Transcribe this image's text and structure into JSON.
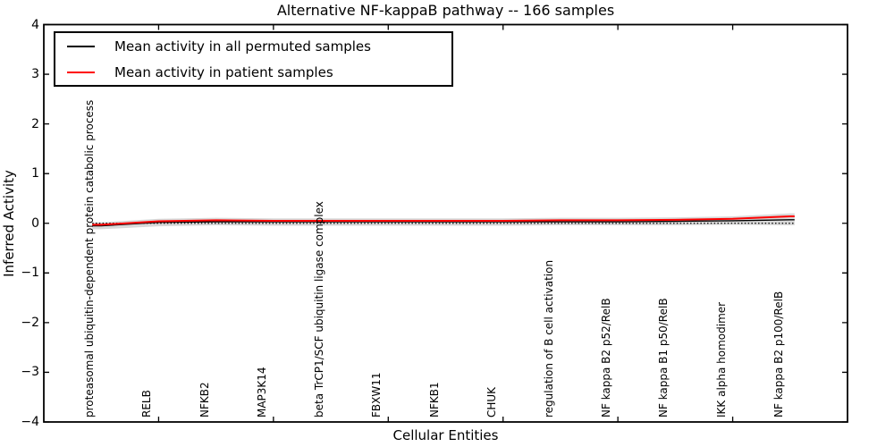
{
  "figure": {
    "title": "Alternative NF-kappaB pathway -- 166 samples",
    "x_axis_label": "Cellular Entities",
    "y_axis_label": "Inferred Activity"
  },
  "legend": {
    "items": [
      {
        "label": "Mean activity in all permuted samples",
        "color": "#000000"
      },
      {
        "label": "Mean activity in patient samples",
        "color": "#ff0000"
      }
    ],
    "position": "upper left"
  },
  "chart_data": {
    "type": "line",
    "title": "Alternative NF-kappaB pathway -- 166 samples",
    "xlabel": "Cellular Entities",
    "ylabel": "Inferred Activity",
    "xlim": [
      0,
      14
    ],
    "ylim": [
      -4,
      4
    ],
    "grid": false,
    "y_ticks": [
      {
        "value": 4,
        "label": "4"
      },
      {
        "value": 3,
        "label": "3"
      },
      {
        "value": 2,
        "label": "2"
      },
      {
        "value": 1,
        "label": "1"
      },
      {
        "value": 0,
        "label": "0"
      },
      {
        "value": -1,
        "label": "−1"
      },
      {
        "value": -2,
        "label": "−2"
      },
      {
        "value": -3,
        "label": "−3"
      },
      {
        "value": -4,
        "label": "−4"
      }
    ],
    "x_major_tick_positions": [
      2,
      4,
      6,
      8,
      10,
      12
    ],
    "categories": [
      "proteasomal ubiquitin-dependent protein catabolic process",
      "RELB",
      "NFKB2",
      "MAP3K14",
      "beta TrCP1/SCF ubiquitin ligase complex",
      "FBXW11",
      "NFKB1",
      "CHUK",
      "regulation of B cell activation",
      "NF kappa B2 p52/RelB",
      "NF kappa B1 p50/RelB",
      "IKK alpha homodimer",
      "NF kappa B2 p100/RelB"
    ],
    "series": [
      {
        "name": "Mean activity in all permuted samples",
        "color": "#000000",
        "line_style": "solid",
        "line_width": 1.4,
        "values": [
          -0.05,
          0.02,
          0.03,
          0.03,
          0.03,
          0.03,
          0.03,
          0.03,
          0.03,
          0.03,
          0.04,
          0.05,
          0.07
        ]
      },
      {
        "name": "Mean activity in patient samples",
        "color": "#ff0000",
        "line_style": "solid",
        "line_width": 2,
        "values": [
          -0.03,
          0.04,
          0.06,
          0.05,
          0.05,
          0.05,
          0.05,
          0.05,
          0.06,
          0.06,
          0.07,
          0.09,
          0.14
        ]
      },
      {
        "name": "zero reference",
        "color": "#000000",
        "line_style": "dotted",
        "line_width": 1.2,
        "values": [
          0,
          0,
          0,
          0,
          0,
          0,
          0,
          0,
          0,
          0,
          0,
          0,
          0
        ]
      }
    ],
    "band": {
      "name": "permuted samples spread",
      "color": "#d8d8d8",
      "upper": [
        0.02,
        0.09,
        0.11,
        0.1,
        0.1,
        0.1,
        0.1,
        0.1,
        0.11,
        0.11,
        0.12,
        0.14,
        0.2
      ],
      "lower": [
        -0.12,
        -0.06,
        -0.04,
        -0.05,
        -0.05,
        -0.05,
        -0.05,
        -0.05,
        -0.04,
        -0.04,
        -0.04,
        -0.03,
        -0.04
      ]
    }
  }
}
